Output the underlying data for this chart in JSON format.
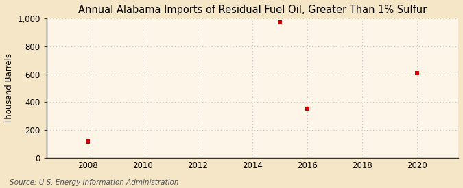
{
  "title": "Annual Alabama Imports of Residual Fuel Oil, Greater Than 1% Sulfur",
  "ylabel": "Thousand Barrels",
  "source": "Source: U.S. Energy Information Administration",
  "background_color": "#f5e6c8",
  "plot_bg_color": "#fdf6e8",
  "grid_color": "#bbbbbb",
  "marker_color": "#cc0000",
  "years": [
    2008,
    2015,
    2016,
    2020
  ],
  "values": [
    120,
    975,
    355,
    610
  ],
  "xlim": [
    2006.5,
    2021.5
  ],
  "ylim": [
    0,
    1000
  ],
  "xticks": [
    2008,
    2010,
    2012,
    2014,
    2016,
    2018,
    2020
  ],
  "yticks": [
    0,
    200,
    400,
    600,
    800,
    1000
  ],
  "ytick_labels": [
    "0",
    "200",
    "400",
    "600",
    "800",
    "1,000"
  ],
  "title_fontsize": 10.5,
  "label_fontsize": 8.5,
  "tick_fontsize": 8.5,
  "source_fontsize": 7.5
}
